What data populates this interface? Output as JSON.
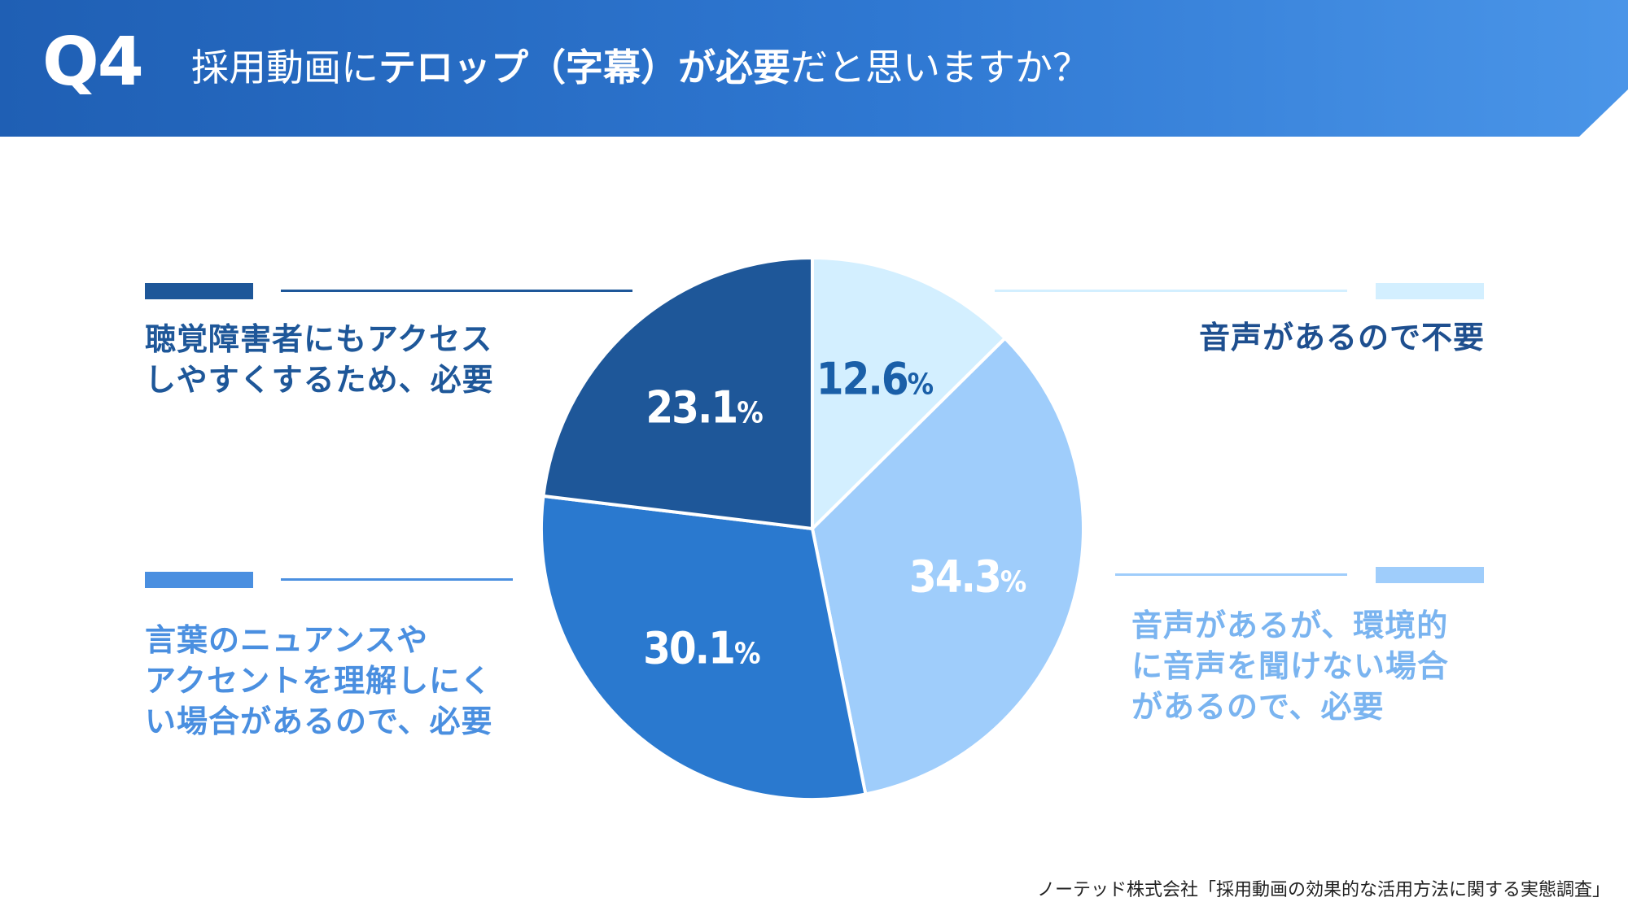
{
  "header": {
    "q_label": "Q4",
    "title_part1": "採用動画に",
    "title_part2": "テロップ（字幕）が必要",
    "title_part3": "だと思いますか？"
  },
  "colors": {
    "header_start": "#1f5fb4",
    "header_end": "#4a95e8",
    "slice_unneeded": "#d3efff",
    "slice_env": "#9fcdfb",
    "slice_nuance": "#2a79cf",
    "slice_hearing": "#1e5799"
  },
  "chart_data": {
    "type": "pie",
    "slices": [
      {
        "label": "音声があるので不要",
        "value": 12.6,
        "display": "12.6",
        "color": "#d3efff",
        "text_color": "#1a5fa8"
      },
      {
        "label": "音声があるが、環境的に音声を聞けない場合があるので、必要",
        "value": 34.3,
        "display": "34.3",
        "color": "#9fcdfb",
        "text_color": "#ffffff"
      },
      {
        "label": "言葉のニュアンスやアクセントを理解しにくい場合があるので、必要",
        "value": 30.1,
        "display": "30.1",
        "color": "#2a79cf",
        "text_color": "#ffffff"
      },
      {
        "label": "聴覚障害者にもアクセスしやすくするため、必要",
        "value": 23.1,
        "display": "23.1",
        "color": "#1e5799",
        "text_color": "#ffffff"
      }
    ],
    "unit": "%"
  },
  "legend": {
    "hearing": [
      "聴覚障害者にもアクセス",
      "しやすくするため、必要"
    ],
    "nuance": [
      "言葉のニュアンスや",
      "アクセントを理解しにく",
      "い場合があるので、必要"
    ],
    "unneeded": [
      "音声があるので不要"
    ],
    "env": [
      "音声があるが、環境的",
      "に音声を聞けない場合",
      "があるので、必要"
    ]
  },
  "source": "ノーテッド株式会社「採用動画の効果的な活用方法に関する実態調査」"
}
